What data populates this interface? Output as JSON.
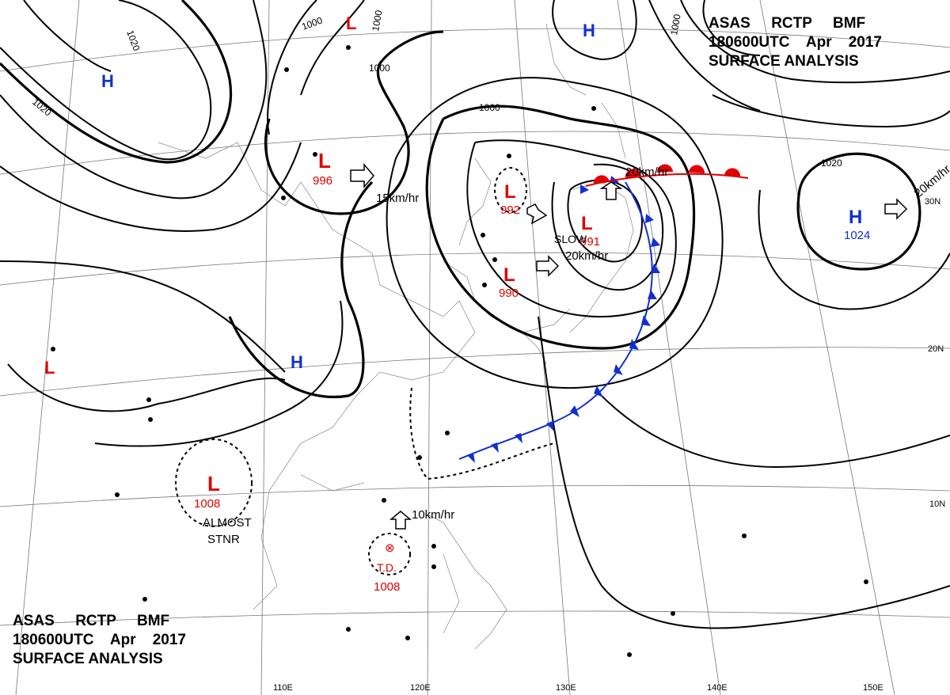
{
  "header": {
    "line1": [
      "ASAS",
      "RCTP",
      "BMF"
    ],
    "line2_time": "180600UTC",
    "line2_month": "Apr",
    "line2_year": "2017",
    "line3": "SURFACE ANALYSIS"
  },
  "pressure_systems": [
    {
      "type": "L",
      "value": "996"
    },
    {
      "type": "L",
      "value": "992"
    },
    {
      "type": "L",
      "value": "991"
    },
    {
      "type": "L",
      "value": "990"
    },
    {
      "type": "L",
      "value": "1008"
    },
    {
      "type": "H",
      "value": "1024"
    },
    {
      "type": "L",
      "value": ""
    },
    {
      "type": "L",
      "value": ""
    },
    {
      "type": "H",
      "value": ""
    },
    {
      "type": "H",
      "value": ""
    },
    {
      "type": "H",
      "value": ""
    }
  ],
  "tropical_depression": {
    "label": "T.D.",
    "value": "1008"
  },
  "isobar_labels": [
    "1020",
    "1020",
    "1000",
    "1000",
    "1000",
    "1000",
    "1000",
    "1020"
  ],
  "motion_labels": [
    "15km/hr",
    "20km/hr",
    "20km/hr",
    "20km/hr",
    "10km/hr",
    "SLOW"
  ],
  "annotation": [
    "ALMOST",
    "STNR"
  ],
  "lat_labels": [
    "30N",
    "20N",
    "10N"
  ],
  "lon_labels": [
    "110E",
    "120E",
    "130E",
    "140E",
    "150E"
  ],
  "colors": {
    "low": "#e00000",
    "high": "#1030d0",
    "isobar": "#000000",
    "grid": "#777777"
  }
}
